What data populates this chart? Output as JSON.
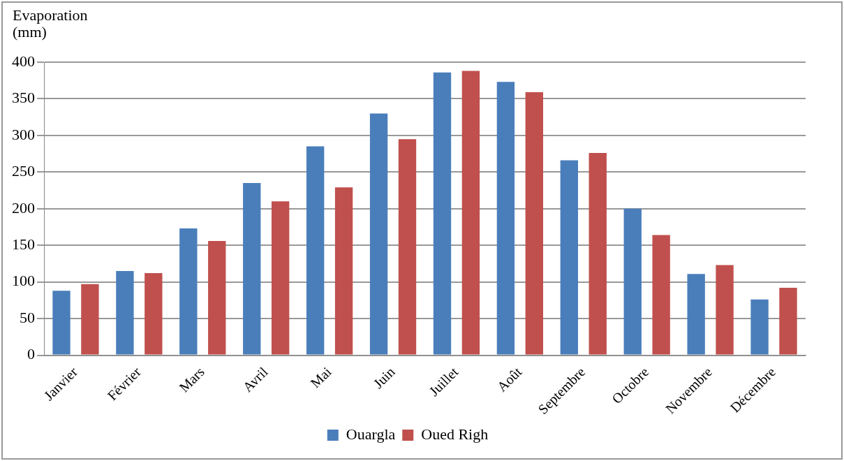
{
  "chart_data": {
    "type": "bar",
    "ylabel": "Evaporation (mm)",
    "categories": [
      "Janvier",
      "Février",
      "Mars",
      "Avril",
      "Mai",
      "Juin",
      "Juillet",
      "Août",
      "Septembre",
      "Octobre",
      "Novembre",
      "Décembre"
    ],
    "series": [
      {
        "name": "Ouargla",
        "color": "#4a7ebb",
        "values": [
          88,
          115,
          173,
          235,
          285,
          330,
          386,
          373,
          266,
          200,
          111,
          76
        ]
      },
      {
        "name": "Oued Righ",
        "color": "#c0504d",
        "values": [
          97,
          112,
          156,
          210,
          229,
          295,
          388,
          359,
          276,
          164,
          123,
          92
        ]
      }
    ],
    "ylim": [
      0,
      400
    ],
    "yticks": [
      0,
      50,
      100,
      150,
      200,
      250,
      300,
      350,
      400
    ],
    "grid": "y",
    "legend": "bottom"
  }
}
